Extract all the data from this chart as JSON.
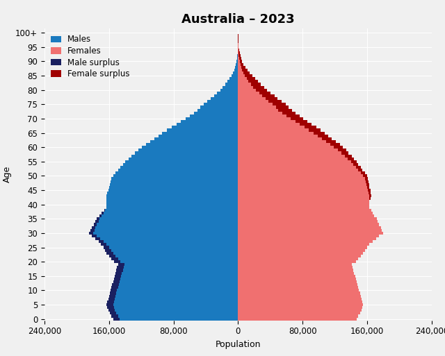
{
  "title": "Australia – 2023",
  "xlabel": "Population",
  "ylabel": "Age",
  "xlim": 240000,
  "background_color": "#f0f0f0",
  "grid_color": "#ffffff",
  "male_color": "#1a7abf",
  "female_color": "#f07070",
  "male_surplus_color": "#1a2060",
  "female_surplus_color": "#a00000",
  "ages": [
    0,
    1,
    2,
    3,
    4,
    5,
    6,
    7,
    8,
    9,
    10,
    11,
    12,
    13,
    14,
    15,
    16,
    17,
    18,
    19,
    20,
    21,
    22,
    23,
    24,
    25,
    26,
    27,
    28,
    29,
    30,
    31,
    32,
    33,
    34,
    35,
    36,
    37,
    38,
    39,
    40,
    41,
    42,
    43,
    44,
    45,
    46,
    47,
    48,
    49,
    50,
    51,
    52,
    53,
    54,
    55,
    56,
    57,
    58,
    59,
    60,
    61,
    62,
    63,
    64,
    65,
    66,
    67,
    68,
    69,
    70,
    71,
    72,
    73,
    74,
    75,
    76,
    77,
    78,
    79,
    80,
    81,
    82,
    83,
    84,
    85,
    86,
    87,
    88,
    89,
    90,
    91,
    92,
    93,
    94,
    95,
    96,
    97,
    98,
    99,
    100
  ],
  "males": [
    155000,
    157000,
    159000,
    161000,
    162000,
    163000,
    162000,
    161000,
    160000,
    159000,
    158000,
    157000,
    156000,
    155000,
    154000,
    153000,
    152000,
    151000,
    150000,
    149000,
    154000,
    157000,
    160000,
    163000,
    165000,
    167000,
    170000,
    173000,
    177000,
    181000,
    185000,
    183000,
    181000,
    179000,
    177000,
    175000,
    172000,
    169000,
    166000,
    163000,
    163000,
    163000,
    163000,
    163000,
    162000,
    161000,
    160000,
    159000,
    158000,
    157000,
    155000,
    152000,
    149000,
    146000,
    143000,
    140000,
    136000,
    132000,
    128000,
    124000,
    119000,
    114000,
    109000,
    104000,
    99000,
    94000,
    88000,
    82000,
    76000,
    71000,
    65000,
    60000,
    55000,
    50000,
    47000,
    43000,
    38000,
    34000,
    30000,
    26000,
    22000,
    19000,
    16000,
    13000,
    10500,
    8200,
    6500,
    5000,
    3700,
    2700,
    1900,
    1300,
    850,
    540,
    330,
    200,
    110,
    60,
    30,
    15,
    8
  ],
  "females": [
    147000,
    149000,
    151000,
    153000,
    154000,
    155000,
    154000,
    153000,
    152000,
    151000,
    150000,
    149000,
    148000,
    147000,
    146000,
    145000,
    144000,
    143000,
    142000,
    141000,
    146000,
    149000,
    152000,
    155000,
    157000,
    160000,
    163000,
    167000,
    171000,
    175000,
    180000,
    178000,
    177000,
    175000,
    173000,
    172000,
    169000,
    167000,
    165000,
    163000,
    163000,
    163000,
    164000,
    165000,
    164000,
    164000,
    163000,
    163000,
    162000,
    161000,
    160000,
    157000,
    154000,
    152000,
    149000,
    147000,
    144000,
    141000,
    137000,
    134000,
    130000,
    126000,
    121000,
    116000,
    112000,
    107000,
    102000,
    97000,
    91000,
    86000,
    81000,
    76000,
    71000,
    67000,
    63000,
    59000,
    54000,
    49000,
    45000,
    40000,
    36000,
    32000,
    28000,
    24500,
    21000,
    17500,
    14500,
    11500,
    9000,
    6800,
    5000,
    3700,
    2700,
    1900,
    1300,
    850,
    550,
    340,
    200,
    110,
    60
  ],
  "xticks": [
    -240000,
    -160000,
    -80000,
    0,
    80000,
    160000,
    240000
  ],
  "xtick_labels": [
    "240,000",
    "160,000",
    "80,000",
    "0",
    "80,000",
    "160,000",
    "240,000"
  ]
}
